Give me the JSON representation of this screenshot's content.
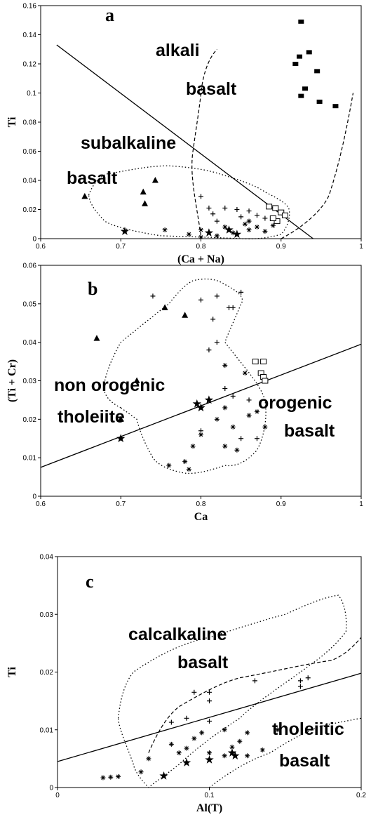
{
  "chart_data": [
    {
      "type": "scatter",
      "label": "a",
      "xlabel": "(Ca + Na)",
      "ylabel": "Ti",
      "xlim": [
        0.6,
        1
      ],
      "xticks": [
        0.6,
        0.7,
        0.8,
        0.9,
        1
      ],
      "ylim": [
        0,
        0.16
      ],
      "yticks": [
        0,
        0.02,
        0.04,
        0.06,
        0.08,
        0.1,
        0.12,
        0.14,
        0.16
      ],
      "annotations": [
        "alkali",
        "basalt",
        "subalkaline",
        "basalt"
      ],
      "series": [
        {
          "marker": "square-filled",
          "color": "#000000",
          "x": [
            0.925,
            0.935,
            0.923,
            0.918,
            0.945,
            0.93,
            0.925,
            0.948,
            0.968
          ],
          "y": [
            0.149,
            0.128,
            0.125,
            0.12,
            0.115,
            0.103,
            0.098,
            0.094,
            0.091
          ]
        },
        {
          "marker": "square-open",
          "color": "#000000",
          "x": [
            0.885,
            0.893,
            0.9,
            0.905,
            0.895,
            0.89
          ],
          "y": [
            0.022,
            0.021,
            0.018,
            0.016,
            0.012,
            0.014
          ]
        },
        {
          "marker": "triangle",
          "color": "#000000",
          "x": [
            0.655,
            0.728,
            0.73,
            0.743
          ],
          "y": [
            0.029,
            0.032,
            0.024,
            0.04
          ]
        },
        {
          "marker": "star",
          "color": "#000000",
          "x": [
            0.705,
            0.81,
            0.845,
            0.835
          ],
          "y": [
            0.005,
            0.004,
            0.003,
            0.006
          ]
        },
        {
          "marker": "plus",
          "color": "#000000",
          "x": [
            0.8,
            0.81,
            0.815,
            0.83,
            0.845,
            0.86,
            0.87,
            0.85,
            0.88,
            0.82
          ],
          "y": [
            0.029,
            0.021,
            0.017,
            0.021,
            0.02,
            0.019,
            0.016,
            0.015,
            0.014,
            0.012
          ]
        },
        {
          "marker": "asterisk",
          "color": "#000000",
          "x": [
            0.755,
            0.785,
            0.8,
            0.82,
            0.83,
            0.84,
            0.855,
            0.86,
            0.87,
            0.88,
            0.89,
            0.8,
            0.86
          ],
          "y": [
            0.006,
            0.003,
            0.006,
            0.002,
            0.008,
            0.004,
            0.01,
            0.006,
            0.008,
            0.005,
            0.009,
            0.001,
            0.012
          ]
        }
      ],
      "lines": [
        {
          "x": [
            0.62,
            0.94
          ],
          "y": [
            0.133,
            0
          ]
        }
      ]
    },
    {
      "type": "scatter",
      "label": "b",
      "xlabel": "Ca",
      "ylabel": "(Ti + Cr)",
      "xlim": [
        0.6,
        1
      ],
      "xticks": [
        0.6,
        0.7,
        0.8,
        0.9,
        1
      ],
      "ylim": [
        0,
        0.06
      ],
      "yticks": [
        0,
        0.01,
        0.02,
        0.03,
        0.04,
        0.05,
        0.06
      ],
      "annotations": [
        "non orogenic",
        "tholeiite",
        "orogenic",
        "basalt"
      ],
      "series": [
        {
          "marker": "triangle",
          "color": "#000000",
          "x": [
            0.67,
            0.72,
            0.7,
            0.755,
            0.78
          ],
          "y": [
            0.041,
            0.03,
            0.02,
            0.049,
            0.047
          ]
        },
        {
          "marker": "square-open",
          "color": "#000000",
          "x": [
            0.868,
            0.878,
            0.875,
            0.878,
            0.88
          ],
          "y": [
            0.035,
            0.035,
            0.032,
            0.031,
            0.03
          ]
        },
        {
          "marker": "plus",
          "color": "#000000",
          "x": [
            0.74,
            0.8,
            0.82,
            0.835,
            0.84,
            0.85,
            0.815,
            0.82,
            0.81,
            0.83,
            0.84,
            0.86,
            0.85,
            0.87,
            0.8
          ],
          "y": [
            0.052,
            0.051,
            0.052,
            0.049,
            0.049,
            0.053,
            0.046,
            0.04,
            0.038,
            0.028,
            0.026,
            0.025,
            0.015,
            0.015,
            0.017
          ]
        },
        {
          "marker": "asterisk",
          "color": "#000000",
          "x": [
            0.76,
            0.785,
            0.78,
            0.8,
            0.83,
            0.82,
            0.84,
            0.855,
            0.86,
            0.87,
            0.88,
            0.83,
            0.845,
            0.79,
            0.83
          ],
          "y": [
            0.008,
            0.007,
            0.009,
            0.016,
            0.034,
            0.02,
            0.018,
            0.032,
            0.021,
            0.022,
            0.018,
            0.013,
            0.012,
            0.013,
            0.023
          ]
        },
        {
          "marker": "star",
          "color": "#000000",
          "x": [
            0.7,
            0.795,
            0.8,
            0.81
          ],
          "y": [
            0.015,
            0.024,
            0.023,
            0.025
          ]
        }
      ],
      "lines": [
        {
          "x": [
            0.6,
            1
          ],
          "y": [
            0.0075,
            0.0395
          ]
        }
      ]
    },
    {
      "type": "scatter",
      "label": "c",
      "xlabel": "Al(T)",
      "ylabel": "Ti",
      "xlim": [
        0,
        0.2
      ],
      "xticks": [
        0,
        0.1,
        0.2
      ],
      "ylim": [
        0,
        0.04
      ],
      "yticks": [
        0,
        0.01,
        0.02,
        0.03,
        0.04
      ],
      "annotations": [
        "calcalkaline",
        "basalt",
        "tholeiitic",
        "basalt"
      ],
      "series": [
        {
          "marker": "plus",
          "color": "#000000",
          "x": [
            0.09,
            0.1,
            0.1,
            0.13,
            0.16,
            0.165,
            0.16,
            0.075,
            0.1,
            0.085
          ],
          "y": [
            0.0165,
            0.0165,
            0.015,
            0.0185,
            0.0185,
            0.019,
            0.0175,
            0.0113,
            0.0115,
            0.012
          ]
        },
        {
          "marker": "asterisk",
          "color": "#000000",
          "x": [
            0.03,
            0.035,
            0.04,
            0.06,
            0.075,
            0.085,
            0.09,
            0.095,
            0.11,
            0.125,
            0.12,
            0.115,
            0.11,
            0.125,
            0.135,
            0.145,
            0.055,
            0.08,
            0.1
          ],
          "y": [
            0.0017,
            0.0018,
            0.0019,
            0.005,
            0.0075,
            0.0068,
            0.0085,
            0.0095,
            0.01,
            0.0095,
            0.008,
            0.007,
            0.0055,
            0.0055,
            0.0065,
            0.01,
            0.0027,
            0.006,
            0.006
          ]
        },
        {
          "marker": "star",
          "color": "#000000",
          "x": [
            0.07,
            0.085,
            0.1,
            0.115,
            0.117
          ],
          "y": [
            0.002,
            0.0043,
            0.0048,
            0.006,
            0.0055
          ]
        }
      ],
      "lines": [
        {
          "x": [
            0,
            0.2
          ],
          "y": [
            0.0045,
            0.0198
          ]
        }
      ]
    }
  ]
}
